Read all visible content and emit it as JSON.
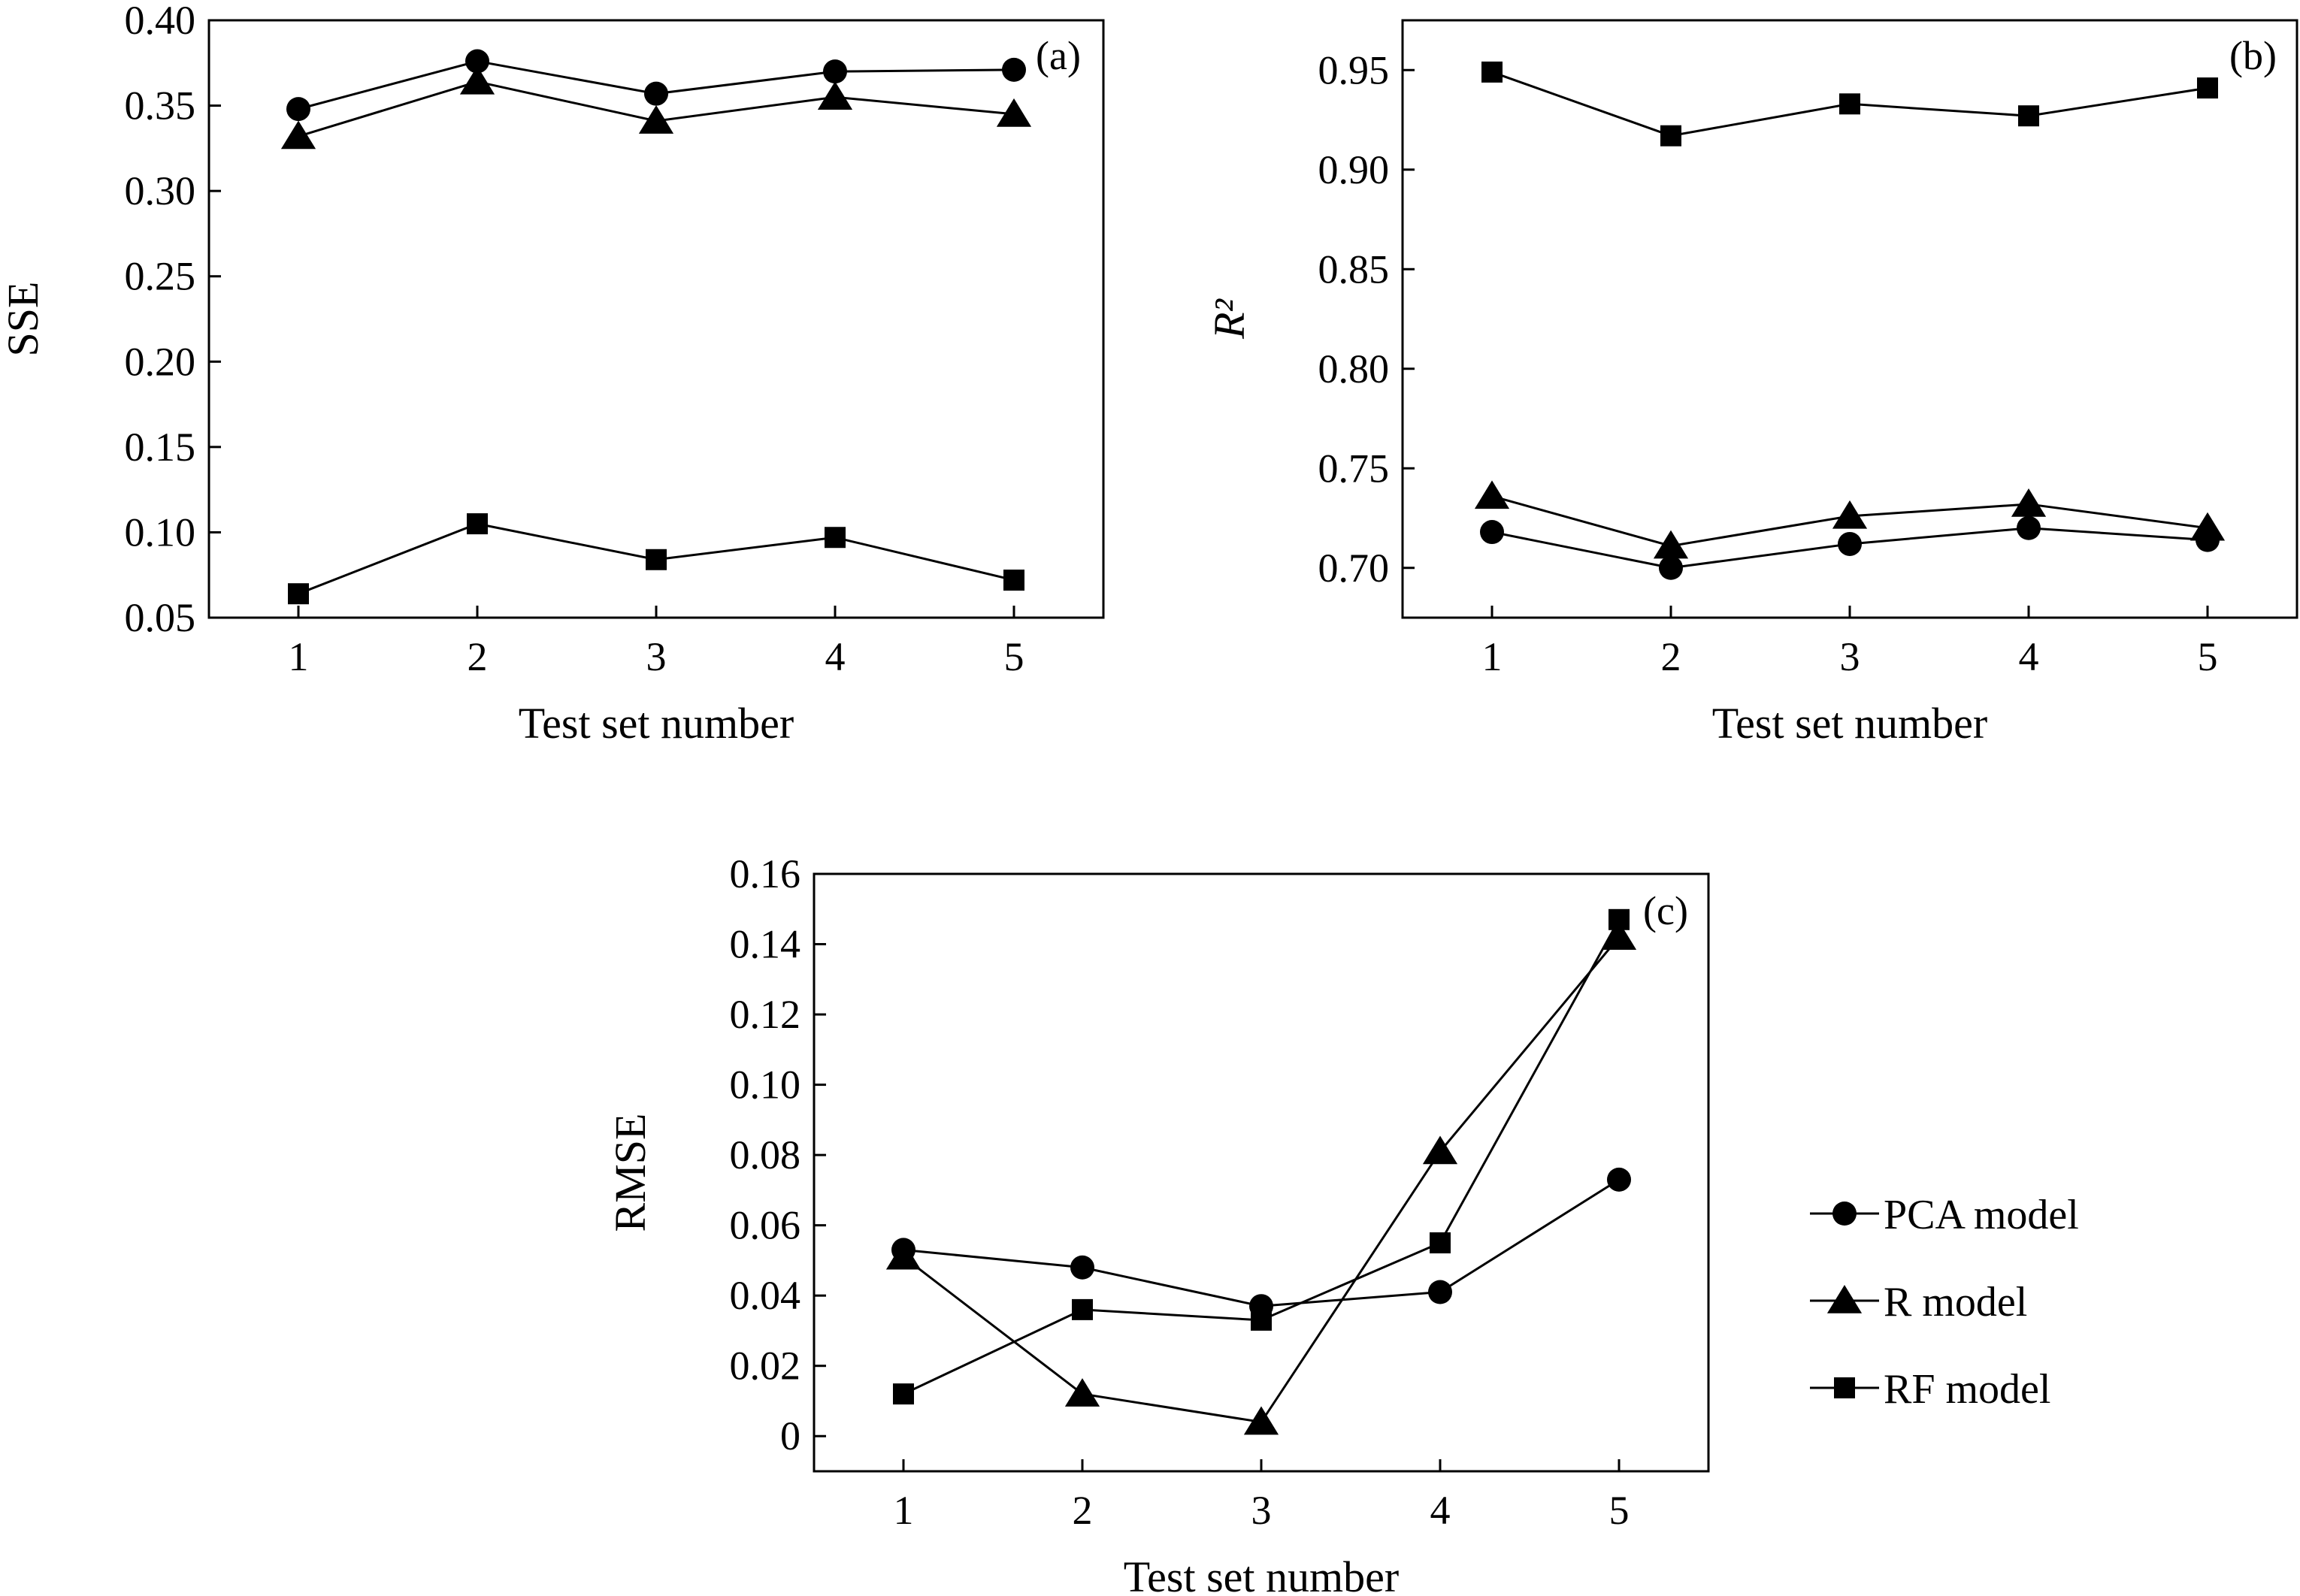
{
  "chart_data": [
    {
      "type": "line",
      "panel_label": "(a)",
      "xlabel": "Test set number",
      "ylabel": "SSE",
      "x": [
        1,
        2,
        3,
        4,
        5
      ],
      "xticks": [
        "1",
        "2",
        "3",
        "4",
        "5"
      ],
      "xlim": [
        0.5,
        5.5
      ],
      "ylim": [
        0.05,
        0.4
      ],
      "yticks": [
        "0.05",
        "0.10",
        "0.15",
        "0.20",
        "0.25",
        "0.30",
        "0.35",
        "0.40"
      ],
      "yticks_values": [
        0.05,
        0.1,
        0.15,
        0.2,
        0.25,
        0.3,
        0.35,
        0.4
      ],
      "grid": false,
      "series": [
        {
          "name": "PCA model",
          "marker": "circle",
          "values": [
            0.348,
            0.376,
            0.357,
            0.37,
            0.371
          ]
        },
        {
          "name": "R model",
          "marker": "triangle",
          "values": [
            0.332,
            0.364,
            0.341,
            0.355,
            0.345
          ]
        },
        {
          "name": "RF model",
          "marker": "square",
          "values": [
            0.064,
            0.105,
            0.084,
            0.097,
            0.072
          ]
        }
      ]
    },
    {
      "type": "line",
      "panel_label": "(b)",
      "xlabel": "Test set number",
      "ylabel": "R²",
      "x": [
        1,
        2,
        3,
        4,
        5
      ],
      "xticks": [
        "1",
        "2",
        "3",
        "4",
        "5"
      ],
      "xlim": [
        0.5,
        5.5
      ],
      "ylim": [
        0.675,
        0.975
      ],
      "yticks": [
        "0.70",
        "0.75",
        "0.80",
        "0.85",
        "0.90",
        "0.95"
      ],
      "yticks_values": [
        0.7,
        0.75,
        0.8,
        0.85,
        0.9,
        0.95
      ],
      "grid": false,
      "series": [
        {
          "name": "PCA model",
          "marker": "circle",
          "values": [
            0.718,
            0.7,
            0.712,
            0.72,
            0.714
          ]
        },
        {
          "name": "R model",
          "marker": "triangle",
          "values": [
            0.736,
            0.711,
            0.726,
            0.732,
            0.72
          ]
        },
        {
          "name": "RF model",
          "marker": "square",
          "values": [
            0.949,
            0.917,
            0.933,
            0.927,
            0.941
          ]
        }
      ]
    },
    {
      "type": "line",
      "panel_label": "(c)",
      "xlabel": "Test set number",
      "ylabel": "RMSE",
      "x": [
        1,
        2,
        3,
        4,
        5
      ],
      "xticks": [
        "1",
        "2",
        "3",
        "4",
        "5"
      ],
      "xlim": [
        0.5,
        5.5
      ],
      "ylim": [
        -0.01,
        0.16
      ],
      "yticks": [
        "0",
        "0.02",
        "0.04",
        "0.06",
        "0.08",
        "0.10",
        "0.12",
        "0.14",
        "0.16"
      ],
      "yticks_values": [
        0,
        0.02,
        0.04,
        0.06,
        0.08,
        0.1,
        0.12,
        0.14,
        0.16
      ],
      "grid": false,
      "legend_position": "right",
      "series": [
        {
          "name": "PCA model",
          "marker": "circle",
          "values": [
            0.053,
            0.048,
            0.037,
            0.041,
            0.073
          ]
        },
        {
          "name": "R model",
          "marker": "triangle",
          "values": [
            0.051,
            0.012,
            0.004,
            0.081,
            0.142
          ]
        },
        {
          "name": "RF model",
          "marker": "square",
          "values": [
            0.012,
            0.036,
            0.033,
            0.055,
            0.147
          ]
        }
      ]
    }
  ],
  "legend": {
    "entries": [
      {
        "name": "PCA model",
        "marker": "circle"
      },
      {
        "name": "R model",
        "marker": "triangle"
      },
      {
        "name": "RF model",
        "marker": "square"
      }
    ]
  },
  "colors": {
    "ink": "#000000",
    "background": "#ffffff"
  }
}
